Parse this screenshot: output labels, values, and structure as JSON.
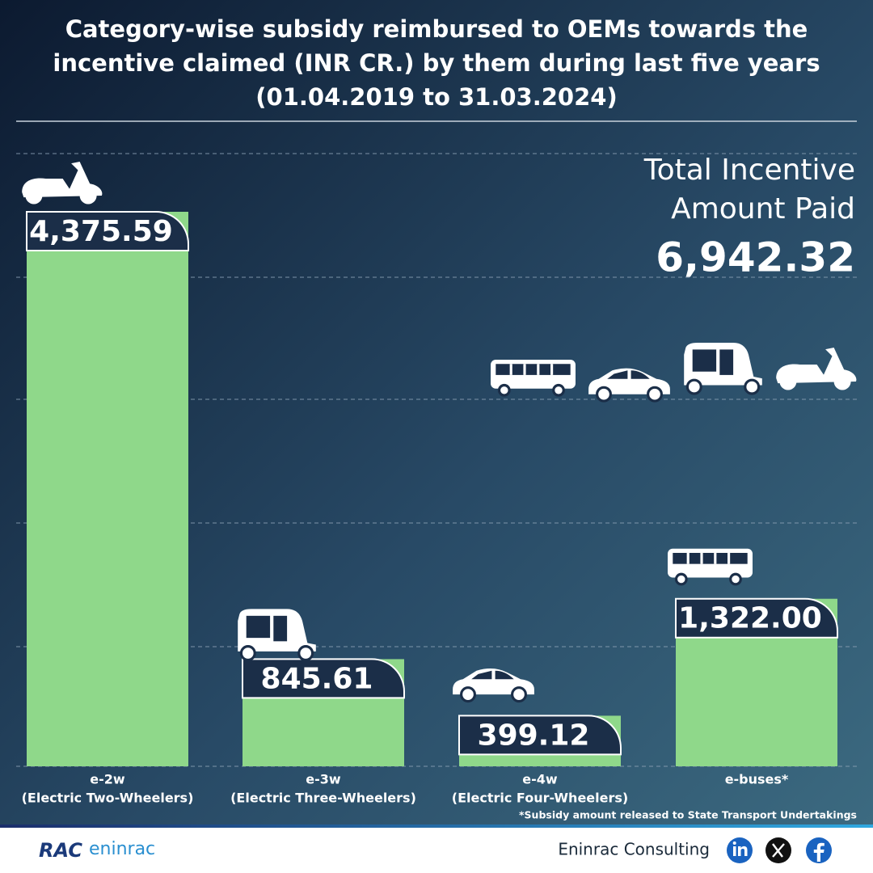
{
  "chart_data": {
    "type": "bar",
    "title": [
      "Category-wise subsidy reimbursed to OEMs towards the",
      "incentive claimed (INR CR.) by them  during last five years",
      "(01.04.2019 to 31.03.2024)"
    ],
    "categories": [
      "e-2w",
      "e-3w",
      "e-4w",
      "e-buses*"
    ],
    "category_descriptions": [
      "(Electric Two-Wheelers)",
      "(Electric Three-Wheelers)",
      "(Electric Four-Wheelers)",
      null
    ],
    "values": [
      4375.59,
      845.61,
      399.12,
      1322.0
    ],
    "value_labels": [
      "4,375.59",
      "845.61",
      "399.12",
      "1,322.00"
    ],
    "color": "#8fd88a",
    "grid": true,
    "total": {
      "label": [
        "Total Incentive",
        "Amount Paid"
      ],
      "value": "6,942.32"
    },
    "footnote": "*Subsidy amount released to State Transport Undertakings"
  },
  "footer": {
    "logo": [
      "RAC",
      "eninrac"
    ],
    "company": "Eninrac Consulting"
  }
}
